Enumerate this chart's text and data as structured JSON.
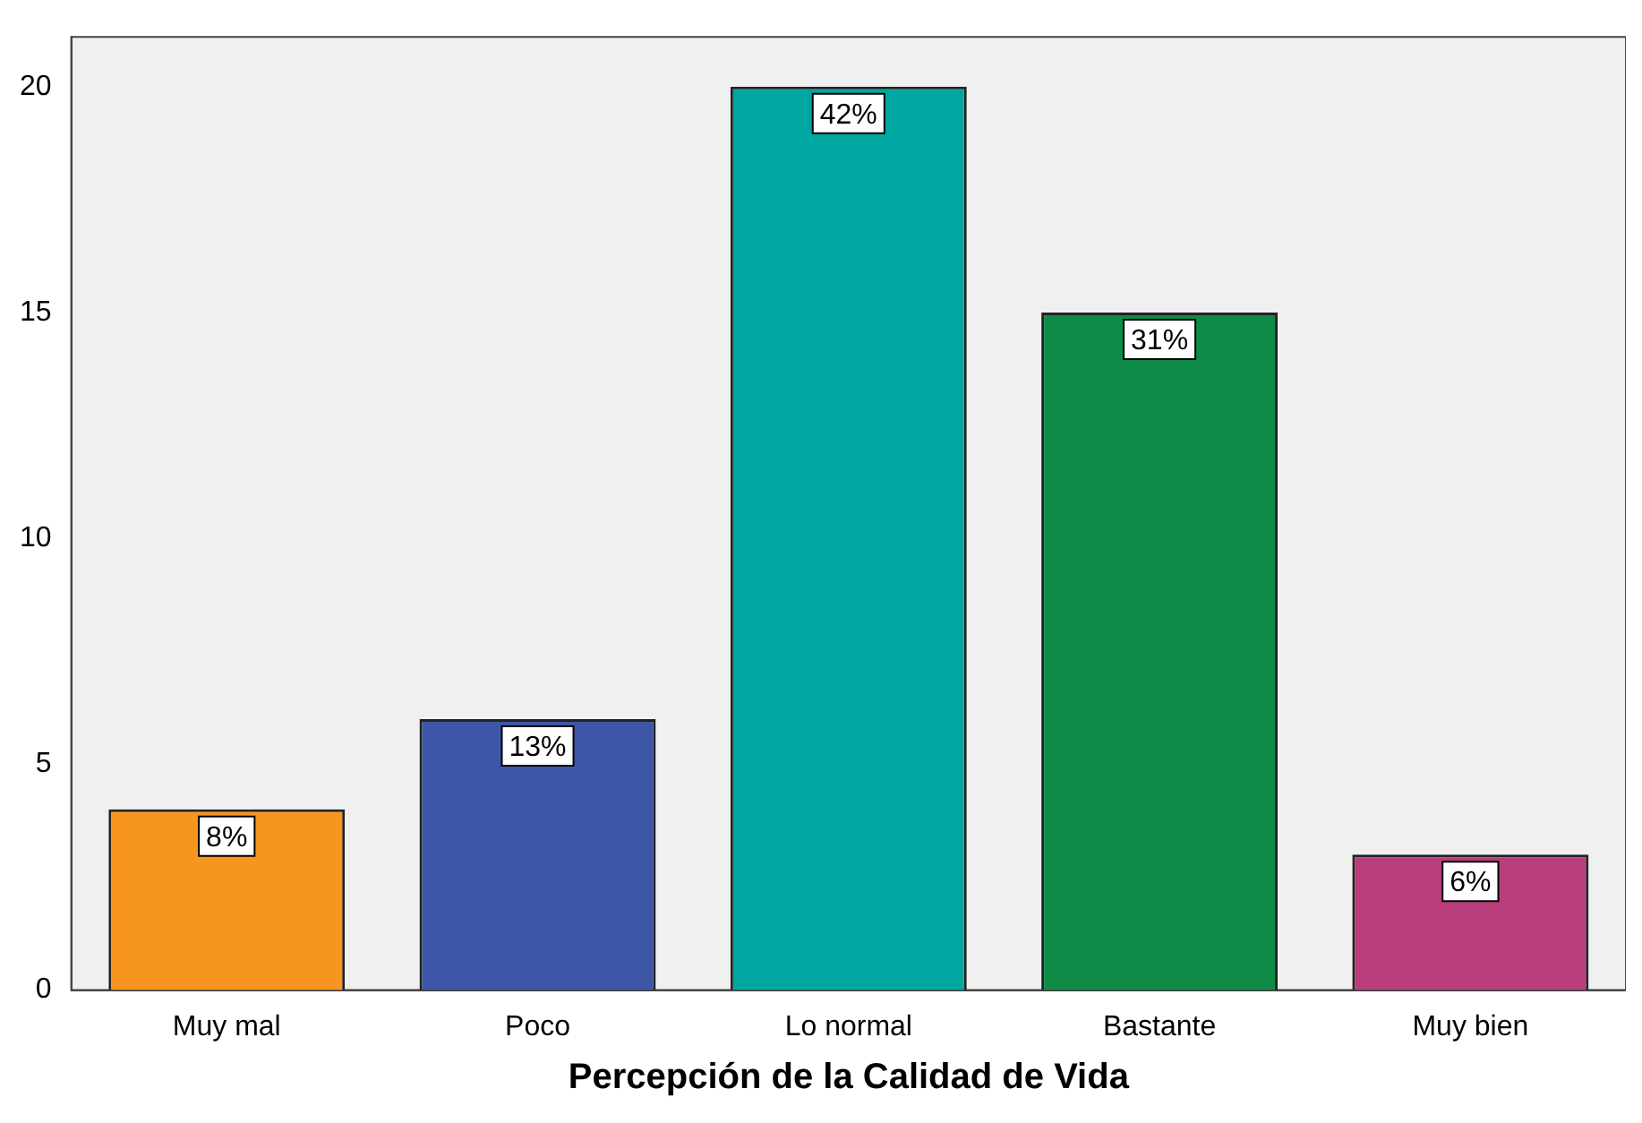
{
  "chart_data": {
    "type": "bar",
    "xlabel": "Percepción de la Calidad de Vida",
    "categories": [
      "Muy mal",
      "Poco",
      "Lo normal",
      "Bastante",
      "Muy bien"
    ],
    "values": [
      4,
      6,
      20,
      15,
      3
    ],
    "colors": [
      "#f7961e",
      "#3e56a8",
      "#00a6a0",
      "#0f8b47",
      "#b83e7c"
    ],
    "annotations": [
      {
        "text": "8%",
        "x": "Muy mal",
        "y": 4
      },
      {
        "text": "13%",
        "x": "Poco",
        "y": 6
      },
      {
        "text": "42%",
        "x": "Lo normal",
        "y": 20
      },
      {
        "text": "31%",
        "x": "Bastante",
        "y": 15
      },
      {
        "text": "6%",
        "x": "Muy bien",
        "y": 3
      }
    ],
    "ylim": [
      0,
      21.1
    ],
    "yticks": [
      0,
      5,
      10,
      15,
      20
    ],
    "grid": false,
    "legend": false
  }
}
